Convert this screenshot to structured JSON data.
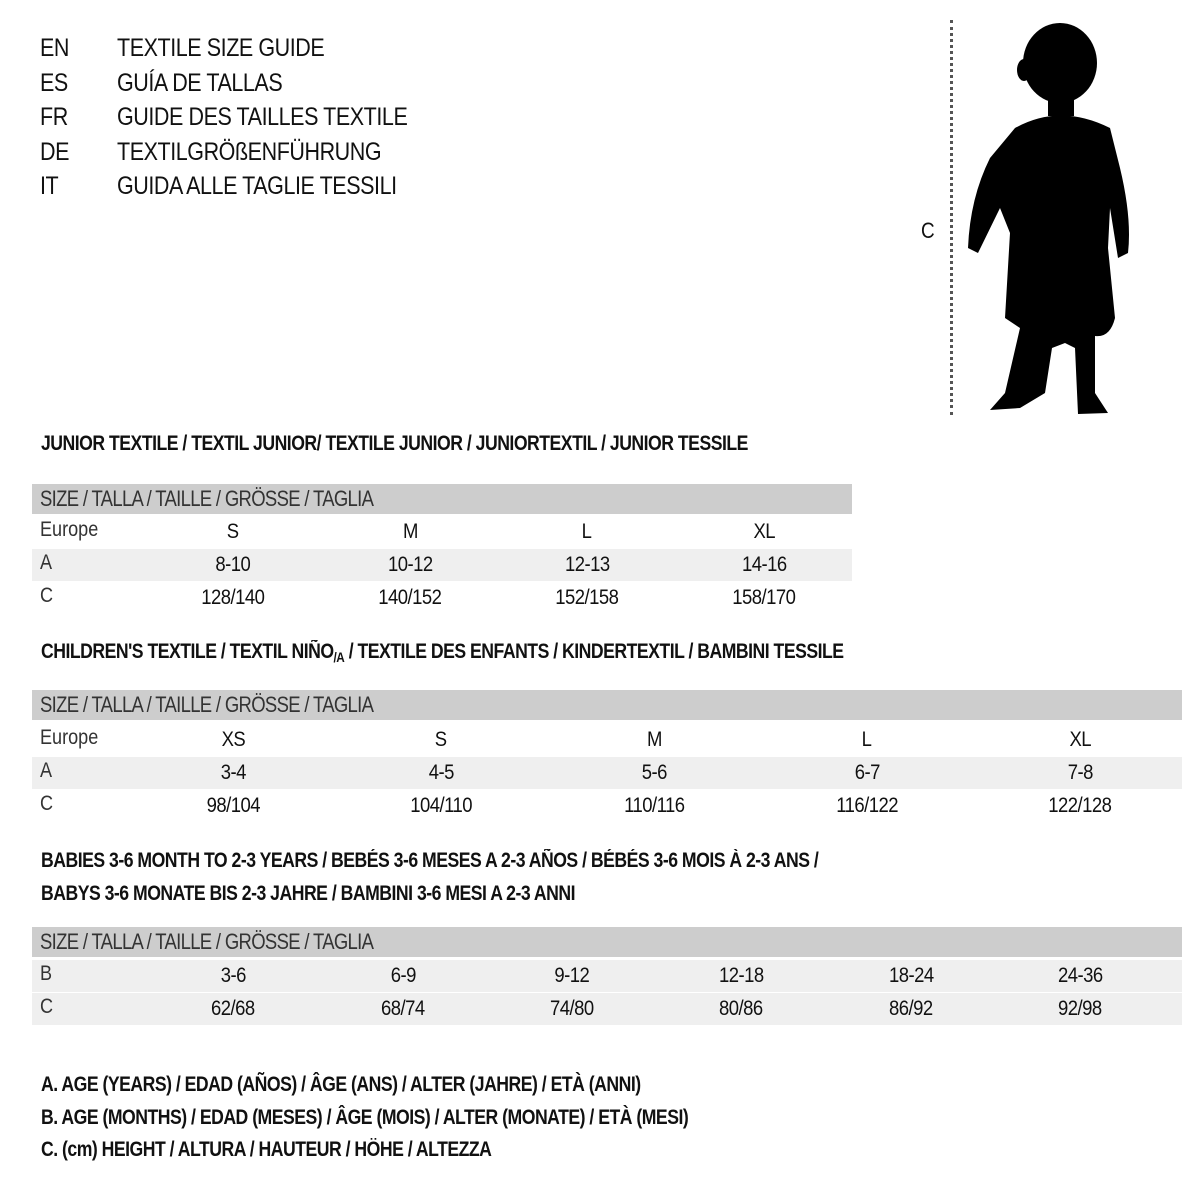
{
  "titles": [
    {
      "code": "EN",
      "text": "TEXTILE SIZE GUIDE"
    },
    {
      "code": "ES",
      "text": "GUÍA DE TALLAS"
    },
    {
      "code": "FR",
      "text": "GUIDE DES TAILLES TEXTILE"
    },
    {
      "code": "DE",
      "text": "TEXTILGRÖßENFÜHRUNG"
    },
    {
      "code": "IT",
      "text": "GUIDA ALLE TAGLIE TESSILI"
    }
  ],
  "figure": {
    "measure_label": "C",
    "icon": "child-silhouette"
  },
  "junior": {
    "heading": "JUNIOR TEXTILE / TEXTIL JUNIOR/ TEXTILE JUNIOR / JUNIORTEXTIL / JUNIOR TESSILE",
    "header": "SIZE / TALLA / TAILLE / GRÖSSE / TAGLIA",
    "rows": [
      {
        "label": "Europe",
        "cells": [
          "S",
          "M",
          "L",
          "XL"
        ]
      },
      {
        "label": "A",
        "cells": [
          "8-10",
          "10-12",
          "12-13",
          "14-16"
        ]
      },
      {
        "label": "C",
        "cells": [
          "128/140",
          "140/152",
          "152/158",
          "158/170"
        ]
      }
    ]
  },
  "children": {
    "heading_pre": "CHILDREN'S TEXTILE / TEXTIL NIÑO",
    "heading_sub": "/A",
    "heading_post": " / TEXTILE DES ENFANTS / KINDERTEXTIL / BAMBINI TESSILE",
    "header": "SIZE / TALLA / TAILLE / GRÖSSE / TAGLIA",
    "rows": [
      {
        "label": "Europe",
        "cells": [
          "XS",
          "S",
          "M",
          "L",
          "XL"
        ]
      },
      {
        "label": "A",
        "cells": [
          "3-4",
          "4-5",
          "5-6",
          "6-7",
          "7-8"
        ]
      },
      {
        "label": "C",
        "cells": [
          "98/104",
          "104/110",
          "110/116",
          "116/122",
          "122/128"
        ]
      }
    ]
  },
  "babies": {
    "heading_line1": "BABIES 3-6 MONTH TO 2-3 YEARS / BEBÉS 3-6 MESES A 2-3 AÑOS / BÉBÉS 3-6 MOIS À 2-3 ANS /",
    "heading_line2": "BABYS 3-6 MONATE BIS 2-3 JAHRE / BAMBINI 3-6 MESI A 2-3 ANNI",
    "header": "SIZE / TALLA / TAILLE / GRÖSSE / TAGLIA",
    "rows": [
      {
        "label": "B",
        "cells": [
          "3-6",
          "6-9",
          "9-12",
          "12-18",
          "18-24",
          "24-36"
        ]
      },
      {
        "label": "C",
        "cells": [
          "62/68",
          "68/74",
          "74/80",
          "80/86",
          "86/92",
          "92/98"
        ]
      }
    ]
  },
  "legend": [
    "A. AGE (YEARS) / EDAD (AÑOS) / ÂGE (ANS) / ALTER (JAHRE) / ETÀ (ANNI)",
    "B. AGE (MONTHS) / EDAD (MESES) / ÂGE (MOIS) / ALTER (MONATE) / ETÀ (MESI)",
    "C. (cm) HEIGHT / ALTURA / HAUTEUR / HÖHE / ALTEZZA"
  ],
  "colors": {
    "header_bar": "#cdcdcd",
    "shaded_row": "#efefef"
  }
}
